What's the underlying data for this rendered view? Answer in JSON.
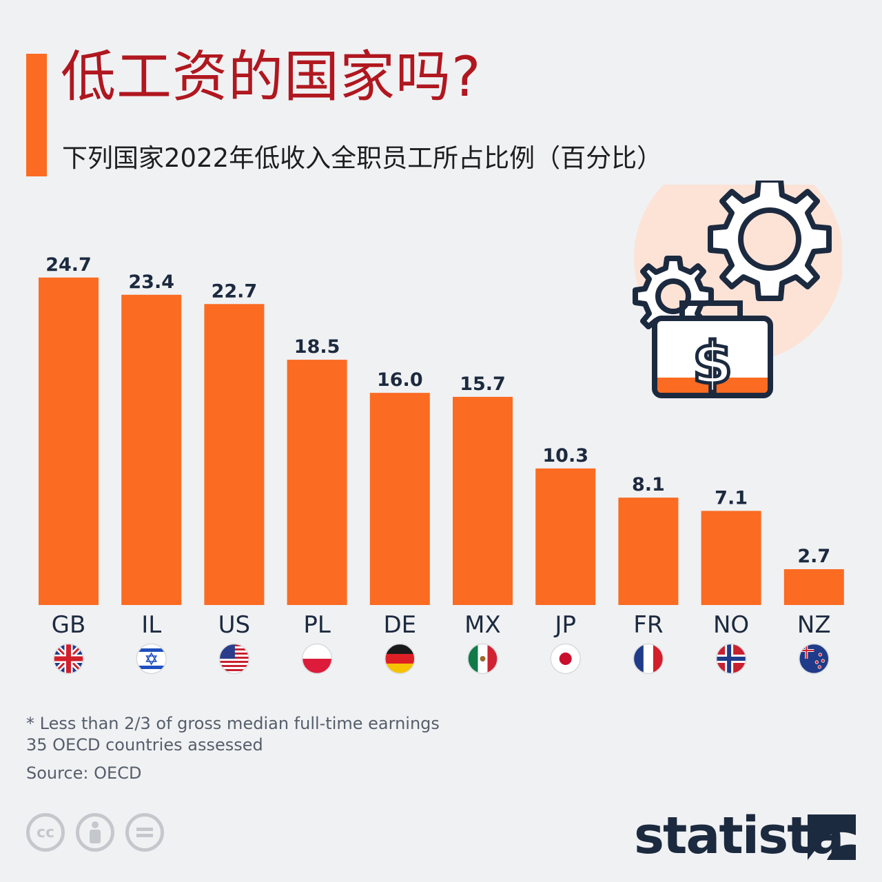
{
  "title": "低工资的国家吗?",
  "subtitle": "下列国家2022年低收入全职员工所占比例（百分比）",
  "notes": {
    "definition": "* Less than 2/3 of gross median full-time earnings",
    "scope": "35 OECD countries assessed",
    "source": "Source: OECD"
  },
  "brand": "statista",
  "colors": {
    "bar": "#fb6b22",
    "title": "#b0171f",
    "label": "#1c2a3f",
    "background": "#f0f1f3"
  },
  "icons": [
    "gears-icon",
    "money-case-icon",
    "creative-commons-icon",
    "attribution-icon",
    "no-derivatives-icon"
  ],
  "chart_data": {
    "type": "bar",
    "categories": [
      "GB",
      "IL",
      "US",
      "PL",
      "DE",
      "MX",
      "JP",
      "FR",
      "NO",
      "NZ"
    ],
    "values": [
      24.7,
      23.4,
      22.7,
      18.5,
      16.0,
      15.7,
      10.3,
      8.1,
      7.1,
      2.7
    ],
    "value_labels": [
      "24.7",
      "23.4",
      "22.7",
      "18.5",
      "16.0",
      "15.7",
      "10.3",
      "8.1",
      "7.1",
      "2.7"
    ],
    "flags": [
      "uk-flag-icon",
      "israel-flag-icon",
      "usa-flag-icon",
      "poland-flag-icon",
      "germany-flag-icon",
      "mexico-flag-icon",
      "japan-flag-icon",
      "france-flag-icon",
      "norway-flag-icon",
      "new-zealand-flag-icon"
    ],
    "title": "",
    "xlabel": "",
    "ylabel": "",
    "ylim": [
      0,
      25
    ],
    "grid": false,
    "legend": "none"
  }
}
